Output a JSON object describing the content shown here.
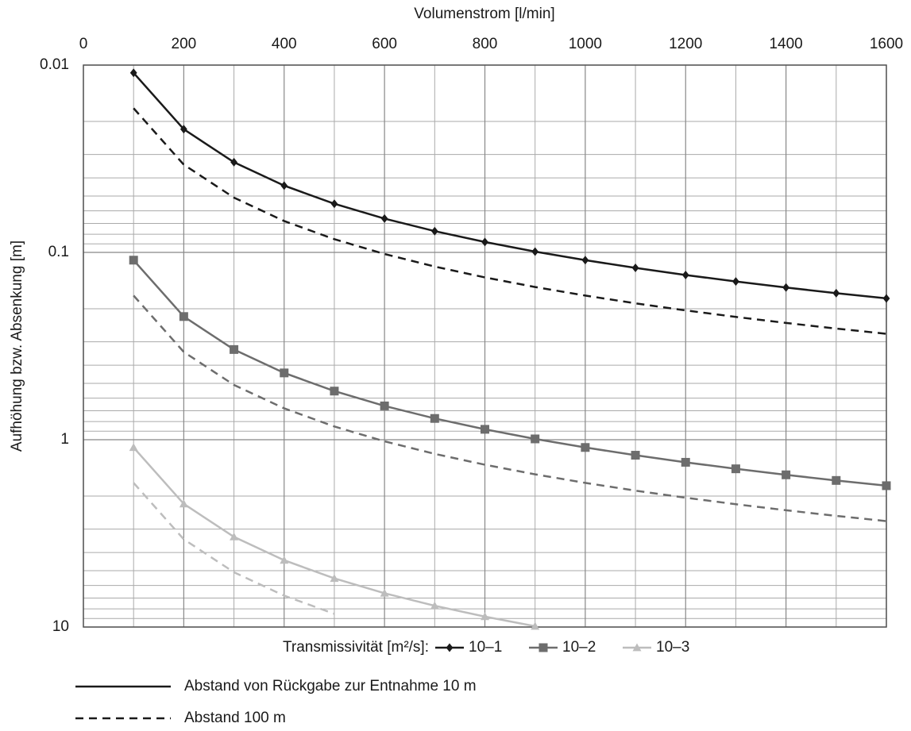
{
  "chart_data": {
    "type": "line",
    "x_label": "Volumenstrom [l/min]",
    "y_label": "Aufhöhung bzw. Absenkung [m]",
    "x": [
      100,
      200,
      300,
      400,
      500,
      600,
      700,
      800,
      900,
      1000,
      1100,
      1200,
      1300,
      1400,
      1500,
      1600
    ],
    "series": [
      {
        "name": "10–1",
        "color": "#1a1a1a",
        "marker": "diamond",
        "values": [
          0.011,
          0.022,
          0.033,
          0.044,
          0.055,
          0.066,
          0.077,
          0.088,
          0.099,
          0.11,
          0.121,
          0.132,
          0.143,
          0.154,
          0.165,
          0.176
        ],
        "values_100m": [
          0.017,
          0.034,
          0.051,
          0.068,
          0.085,
          0.102,
          0.119,
          0.136,
          0.153,
          0.17,
          0.187,
          0.204,
          0.221,
          0.238,
          0.255,
          0.272
        ]
      },
      {
        "name": "10–2",
        "color": "#6d6d6d",
        "marker": "square",
        "values": [
          0.11,
          0.22,
          0.33,
          0.44,
          0.55,
          0.66,
          0.77,
          0.88,
          0.99,
          1.1,
          1.21,
          1.32,
          1.43,
          1.54,
          1.65,
          1.76
        ],
        "values_100m": [
          0.17,
          0.34,
          0.51,
          0.68,
          0.85,
          1.02,
          1.19,
          1.36,
          1.53,
          1.7,
          1.87,
          2.04,
          2.21,
          2.38,
          2.55,
          2.72
        ]
      },
      {
        "name": "10–3",
        "color": "#bdbdbd",
        "marker": "triangle",
        "values": [
          1.1,
          2.2,
          3.3,
          4.4,
          5.5,
          6.6,
          7.7,
          8.8,
          9.9,
          null,
          null,
          null,
          null,
          null,
          null,
          null
        ],
        "values_100m": [
          1.7,
          3.4,
          5.1,
          6.8,
          8.5,
          null,
          null,
          null,
          null,
          null,
          null,
          null,
          null,
          null,
          null,
          null
        ]
      }
    ],
    "xlim": [
      0,
      1600
    ],
    "xticks": [
      0,
      200,
      400,
      600,
      800,
      1000,
      1200,
      1400,
      1600
    ],
    "ylim": [
      0.01,
      10
    ],
    "yticks": [
      0.01,
      0.1,
      1,
      10
    ],
    "y_log": true,
    "y_inverted": true,
    "grid": true,
    "legend_title": "Transmissivität [m²/s]:",
    "style_legend": [
      "Abstand von Rückgabe zur Entnahme 10 m",
      "Abstand 100 m"
    ]
  }
}
